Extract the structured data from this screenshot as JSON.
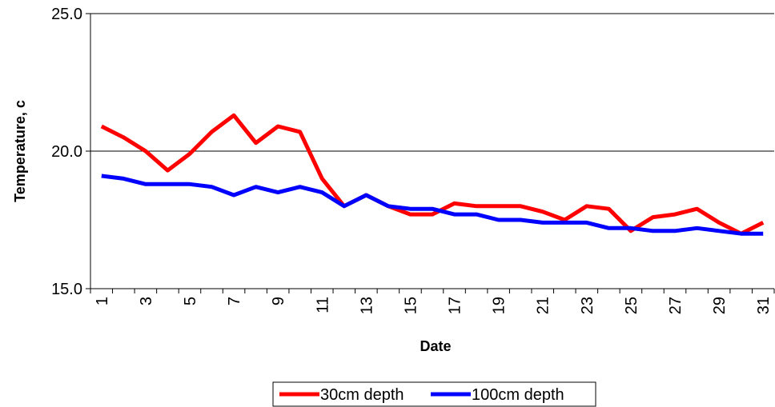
{
  "chart_data": {
    "type": "line",
    "title": "",
    "xlabel": "Date",
    "ylabel": "Temperature, c",
    "ylim": [
      15,
      25
    ],
    "yticks": [
      "15.0",
      "20.0",
      "25.0"
    ],
    "grid": "horizontal",
    "legend_position": "bottom",
    "categories": [
      1,
      2,
      3,
      4,
      5,
      6,
      7,
      8,
      9,
      10,
      11,
      12,
      13,
      14,
      15,
      16,
      17,
      18,
      19,
      20,
      21,
      22,
      23,
      24,
      25,
      26,
      27,
      28,
      29,
      30,
      31
    ],
    "xtick_labels": [
      "1",
      "3",
      "5",
      "7",
      "9",
      "11",
      "13",
      "15",
      "17",
      "19",
      "21",
      "23",
      "25",
      "27",
      "29",
      "31"
    ],
    "series": [
      {
        "name": "30cm depth",
        "color": "#ff0000",
        "values": [
          20.9,
          20.5,
          20.0,
          19.3,
          19.9,
          20.7,
          21.3,
          20.3,
          20.9,
          20.7,
          19.0,
          18.0,
          18.4,
          18.0,
          17.7,
          17.7,
          18.1,
          18.0,
          18.0,
          18.0,
          17.8,
          17.5,
          18.0,
          17.9,
          17.1,
          17.6,
          17.7,
          17.9,
          17.4,
          17.0,
          17.4
        ]
      },
      {
        "name": "100cm depth",
        "color": "#0000ff",
        "values": [
          19.1,
          19.0,
          18.8,
          18.8,
          18.8,
          18.7,
          18.4,
          18.7,
          18.5,
          18.7,
          18.5,
          18.0,
          18.4,
          18.0,
          17.9,
          17.9,
          17.7,
          17.7,
          17.5,
          17.5,
          17.4,
          17.4,
          17.4,
          17.2,
          17.2,
          17.1,
          17.1,
          17.2,
          17.1,
          17.0,
          17.0
        ]
      }
    ]
  }
}
